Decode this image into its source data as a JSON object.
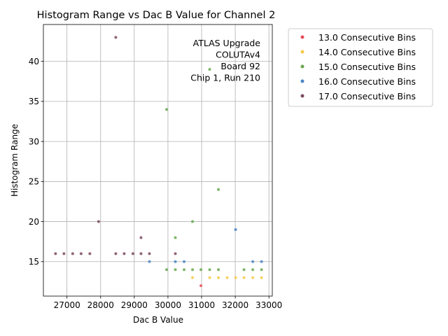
{
  "chart_data": {
    "type": "scatter",
    "title": "Histogram Range vs Dac B Value for Channel 2",
    "xlabel": "Dac B Value",
    "ylabel": "Histogram Range",
    "xlim": [
      26300,
      33100
    ],
    "ylim": [
      10.7,
      44.6
    ],
    "xticks": [
      27000,
      28000,
      29000,
      30000,
      31000,
      32000,
      33000
    ],
    "yticks": [
      15,
      20,
      25,
      30,
      35,
      40
    ],
    "grid": true,
    "legend_position": "outside-right",
    "annotation": [
      "ATLAS Upgrade",
      "COLUTAv4",
      "Board 92",
      "Chip 1, Run 210"
    ],
    "series": [
      {
        "name": "13.0 Consecutive Bins",
        "color": "#e8505b",
        "points": [
          [
            30980,
            12
          ]
        ]
      },
      {
        "name": "14.0 Consecutive Bins",
        "color": "#f7c948",
        "points": [
          [
            30730,
            13
          ],
          [
            31240,
            13
          ],
          [
            31500,
            13
          ],
          [
            31760,
            13
          ],
          [
            32010,
            13
          ],
          [
            32260,
            13
          ],
          [
            32520,
            13
          ],
          [
            32780,
            13
          ]
        ]
      },
      {
        "name": "15.0 Consecutive Bins",
        "color": "#6aa84f",
        "points": [
          [
            29960,
            14
          ],
          [
            30220,
            14
          ],
          [
            30480,
            14
          ],
          [
            30730,
            14
          ],
          [
            30980,
            14
          ],
          [
            31240,
            14
          ],
          [
            31500,
            14
          ],
          [
            32260,
            14
          ],
          [
            32520,
            14
          ],
          [
            32780,
            14
          ],
          [
            29960,
            34
          ],
          [
            30220,
            18
          ],
          [
            30730,
            20
          ],
          [
            31240,
            39
          ],
          [
            31500,
            24
          ]
        ]
      },
      {
        "name": "16.0 Consecutive Bins",
        "color": "#4a86c5",
        "points": [
          [
            29450,
            15
          ],
          [
            30220,
            15
          ],
          [
            30480,
            15
          ],
          [
            32010,
            19
          ],
          [
            32520,
            15
          ],
          [
            32780,
            15
          ]
        ]
      },
      {
        "name": "17.0 Consecutive Bins",
        "color": "#7b4a63",
        "points": [
          [
            26660,
            16
          ],
          [
            26910,
            16
          ],
          [
            27170,
            16
          ],
          [
            27420,
            16
          ],
          [
            27680,
            16
          ],
          [
            27940,
            20
          ],
          [
            28450,
            16
          ],
          [
            28450,
            43
          ],
          [
            28700,
            16
          ],
          [
            28960,
            16
          ],
          [
            29200,
            16
          ],
          [
            29200,
            18
          ],
          [
            29450,
            16
          ],
          [
            30220,
            16
          ]
        ]
      }
    ]
  }
}
